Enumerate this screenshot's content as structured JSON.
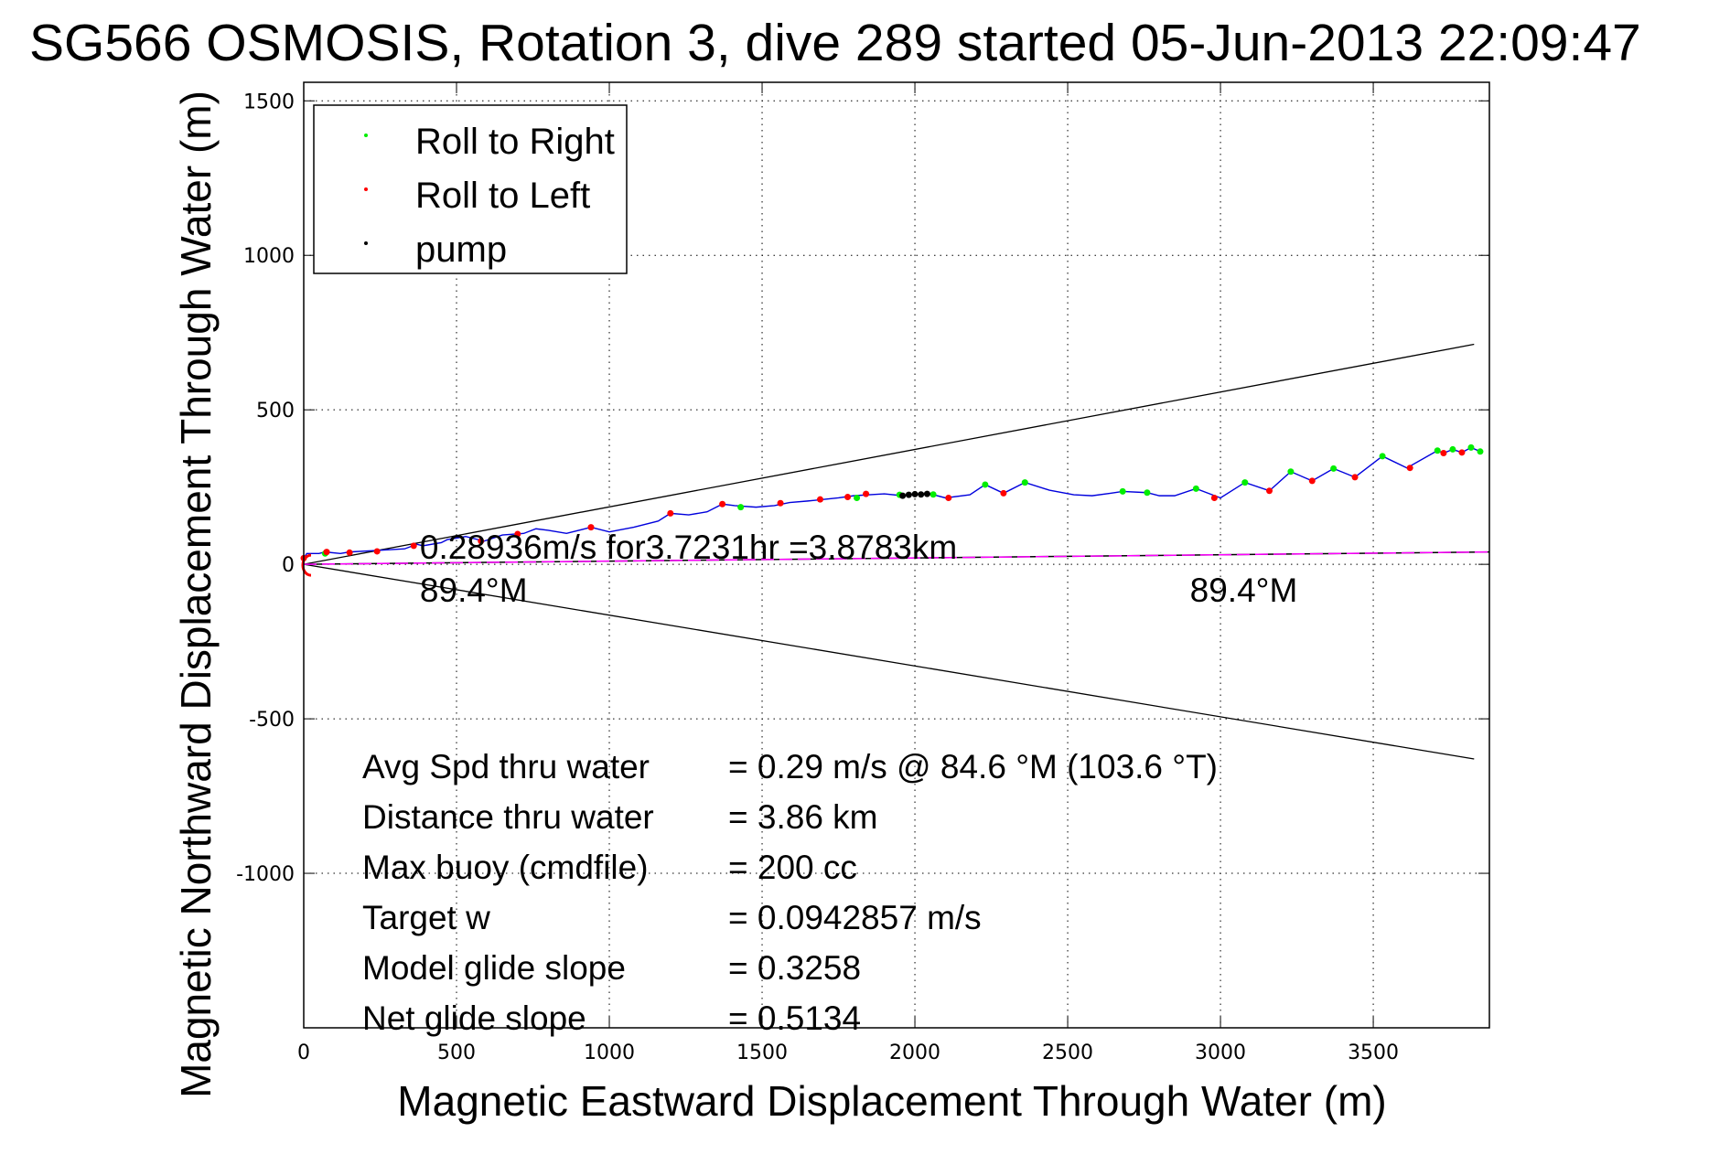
{
  "chart_data": {
    "type": "line",
    "title": "SG566 OSMOSIS, Rotation 3, dive 289 started 05-Jun-2013 22:09:47",
    "xlabel": "Magnetic Eastward Displacement Through Water (m)",
    "ylabel": "Magnetic Northward Displacement Through Water (m)",
    "xlim": [
      0,
      3880
    ],
    "ylim": [
      -1500,
      1560
    ],
    "grid": true,
    "x_ticks": [
      0,
      500,
      1000,
      1500,
      2000,
      2500,
      3000,
      3500
    ],
    "x_tick_labels": [
      "0",
      "500",
      "1000",
      "1500",
      "2000",
      "2500",
      "3000",
      "3500"
    ],
    "y_ticks": [
      1500,
      1000,
      500,
      0,
      -500,
      -1000
    ],
    "y_tick_labels": [
      "1500",
      "1000",
      "500",
      "0",
      "-500",
      "-1000"
    ],
    "legend": {
      "position": "top-left",
      "entries": [
        {
          "label": "Roll to Right",
          "color": "#00ee00"
        },
        {
          "label": "Roll to Left",
          "color": "#ff0000"
        },
        {
          "label": "pump",
          "color": "#000000"
        }
      ]
    },
    "series": [
      {
        "name": "track",
        "color": "#0000dd",
        "points": [
          [
            0,
            20
          ],
          [
            10,
            35
          ],
          [
            50,
            35
          ],
          [
            70,
            40
          ],
          [
            120,
            35
          ],
          [
            150,
            40
          ],
          [
            240,
            45
          ],
          [
            330,
            50
          ],
          [
            370,
            65
          ],
          [
            390,
            60
          ],
          [
            450,
            70
          ],
          [
            470,
            80
          ],
          [
            530,
            90
          ],
          [
            590,
            75
          ],
          [
            650,
            95
          ],
          [
            720,
            100
          ],
          [
            760,
            115
          ],
          [
            800,
            110
          ],
          [
            860,
            100
          ],
          [
            940,
            120
          ],
          [
            1000,
            105
          ],
          [
            1080,
            120
          ],
          [
            1160,
            140
          ],
          [
            1200,
            165
          ],
          [
            1260,
            160
          ],
          [
            1320,
            170
          ],
          [
            1370,
            195
          ],
          [
            1410,
            190
          ],
          [
            1480,
            185
          ],
          [
            1540,
            190
          ],
          [
            1590,
            200
          ],
          [
            1650,
            205
          ],
          [
            1700,
            210
          ],
          [
            1750,
            215
          ],
          [
            1800,
            222
          ],
          [
            1850,
            225
          ],
          [
            1900,
            228
          ],
          [
            1960,
            222
          ],
          [
            2000,
            227
          ],
          [
            2050,
            228
          ],
          [
            2100,
            215
          ],
          [
            2180,
            225
          ],
          [
            2230,
            258
          ],
          [
            2290,
            230
          ],
          [
            2360,
            265
          ],
          [
            2440,
            240
          ],
          [
            2520,
            225
          ],
          [
            2580,
            222
          ],
          [
            2640,
            230
          ],
          [
            2680,
            236
          ],
          [
            2760,
            232
          ],
          [
            2800,
            222
          ],
          [
            2850,
            222
          ],
          [
            2920,
            245
          ],
          [
            3000,
            215
          ],
          [
            3080,
            265
          ],
          [
            3160,
            238
          ],
          [
            3230,
            300
          ],
          [
            3300,
            270
          ],
          [
            3370,
            310
          ],
          [
            3440,
            282
          ],
          [
            3530,
            350
          ],
          [
            3610,
            312
          ],
          [
            3710,
            368
          ],
          [
            3730,
            360
          ],
          [
            3760,
            372
          ],
          [
            3790,
            362
          ],
          [
            3820,
            378
          ],
          [
            3850,
            365
          ]
        ]
      },
      {
        "name": "Roll to Right",
        "color": "#00ee00",
        "points": [
          [
            70,
            35
          ],
          [
            1430,
            185
          ],
          [
            1810,
            215
          ],
          [
            1950,
            225
          ],
          [
            2060,
            226
          ],
          [
            2230,
            258
          ],
          [
            2360,
            265
          ],
          [
            2680,
            236
          ],
          [
            2760,
            232
          ],
          [
            2920,
            245
          ],
          [
            3080,
            265
          ],
          [
            3230,
            300
          ],
          [
            3370,
            310
          ],
          [
            3530,
            350
          ],
          [
            3710,
            368
          ],
          [
            3760,
            372
          ],
          [
            3820,
            378
          ],
          [
            3850,
            365
          ]
        ]
      },
      {
        "name": "Roll to Left",
        "color": "#ff0000",
        "points": [
          [
            0,
            20
          ],
          [
            75,
            40
          ],
          [
            150,
            38
          ],
          [
            240,
            42
          ],
          [
            360,
            60
          ],
          [
            580,
            75
          ],
          [
            700,
            98
          ],
          [
            940,
            120
          ],
          [
            1200,
            165
          ],
          [
            1370,
            195
          ],
          [
            1560,
            198
          ],
          [
            1690,
            210
          ],
          [
            1780,
            218
          ],
          [
            1840,
            228
          ],
          [
            2110,
            215
          ],
          [
            2290,
            230
          ],
          [
            2980,
            215
          ],
          [
            3160,
            238
          ],
          [
            3300,
            270
          ],
          [
            3440,
            282
          ],
          [
            3620,
            312
          ],
          [
            3730,
            360
          ],
          [
            3790,
            362
          ]
        ]
      },
      {
        "name": "pump",
        "color": "#000000",
        "points": [
          [
            1960,
            222
          ],
          [
            1980,
            225
          ],
          [
            2000,
            227
          ],
          [
            2020,
            226
          ],
          [
            2040,
            228
          ]
        ]
      },
      {
        "name": "avg-heading",
        "color": "#ff00ff",
        "style": "dashed",
        "points": [
          [
            0,
            0
          ],
          [
            3880,
            40
          ]
        ]
      },
      {
        "name": "heading-envelope-upper",
        "color": "#000000",
        "points": [
          [
            0,
            0
          ],
          [
            3830,
            712
          ]
        ]
      },
      {
        "name": "heading-envelope-lower",
        "color": "#000000",
        "points": [
          [
            0,
            0
          ],
          [
            3830,
            -630
          ]
        ]
      }
    ],
    "annotations": [
      {
        "text": "0.28936m/s for3.7231hr =3.8783km",
        "x": 380,
        "y": 20
      },
      {
        "text": "89.4°M",
        "x": 380,
        "y": -60
      },
      {
        "text": "89.4°M",
        "x": 2900,
        "y": -60
      }
    ],
    "stats": [
      {
        "label": "Avg Spd thru water",
        "value": "=  0.29 m/s @  84.6 °M (103.6 °T)"
      },
      {
        "label": "Distance thru water",
        "value": "=  3.86 km"
      },
      {
        "label": "Max buoy (cmdfile)",
        "value": "= 200 cc"
      },
      {
        "label": "Target w",
        "value": "= 0.0942857 m/s"
      },
      {
        "label": "Model glide slope",
        "value": "= 0.3258"
      },
      {
        "label": "Net glide slope",
        "value": "= 0.5134"
      }
    ]
  }
}
